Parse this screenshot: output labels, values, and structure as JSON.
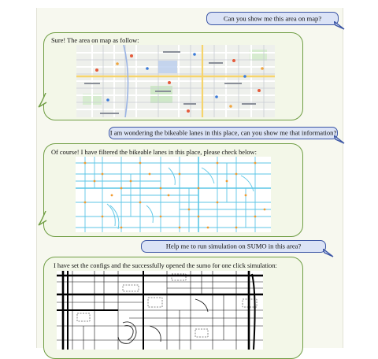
{
  "chat": {
    "messages": [
      {
        "role": "user",
        "text": "Can you show me this area on map?"
      },
      {
        "role": "assistant",
        "text": "Sure! The area on map as follow:",
        "attachment": "street-map-screenshot"
      },
      {
        "role": "user",
        "text": "I am wondering the bikeable lanes in this place, can you show me that information?"
      },
      {
        "role": "assistant",
        "text": "Of course! I have filtered the bikeable lanes in this place, please check below:",
        "attachment": "bike-lane-network-map"
      },
      {
        "role": "user",
        "text": "Help me to run simulation on SUMO in this area?"
      },
      {
        "role": "assistant",
        "text": "I have set the configs and the successfully opened the sumo for one click simulation:",
        "attachment": "sumo-road-network-view"
      }
    ]
  },
  "colors": {
    "user_bubble_fill": "#dbe3f6",
    "user_bubble_border": "#3c56a5",
    "assistant_bubble_fill": "#f3f7e8",
    "assistant_bubble_border": "#6f9d43",
    "bike_lane_color": "#5cc6e6",
    "bike_lane_node_color": "#f29a2e"
  }
}
